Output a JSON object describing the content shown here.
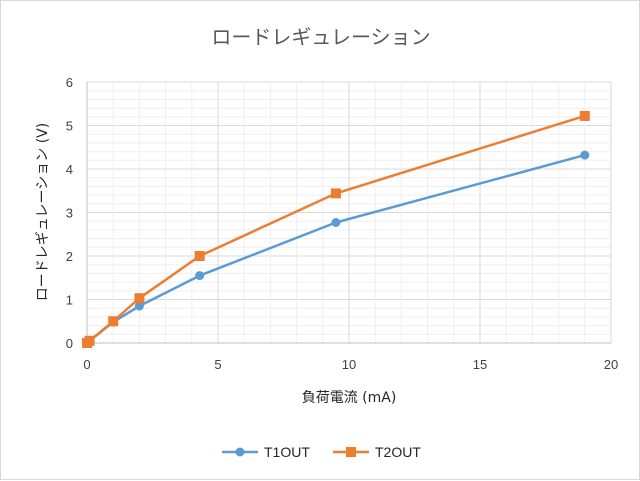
{
  "chart_data": {
    "type": "line",
    "title": "ロードレギュレーション",
    "xlabel": "負荷電流 (mA)",
    "ylabel": "ロードレギュレーション (V)",
    "xlim": [
      0,
      20
    ],
    "ylim": [
      0,
      6
    ],
    "x_ticks": [
      "0",
      "5",
      "10",
      "15",
      "20"
    ],
    "y_ticks": [
      "0",
      "1",
      "2",
      "3",
      "4",
      "5",
      "6"
    ],
    "grid": true,
    "legend_position": "bottom",
    "series": [
      {
        "name": "T1OUT",
        "color": "#5b9bd5",
        "marker": "circle",
        "x": [
          0,
          0.1,
          1.0,
          2.0,
          4.3,
          9.5,
          19.0
        ],
        "y": [
          0,
          0.05,
          0.48,
          0.85,
          1.55,
          2.77,
          4.32
        ]
      },
      {
        "name": "T2OUT",
        "color": "#ed7d31",
        "marker": "square",
        "x": [
          0,
          0.1,
          1.0,
          2.0,
          4.3,
          9.5,
          19.0
        ],
        "y": [
          0,
          0.05,
          0.5,
          1.03,
          2.0,
          3.44,
          5.22
        ]
      }
    ]
  }
}
